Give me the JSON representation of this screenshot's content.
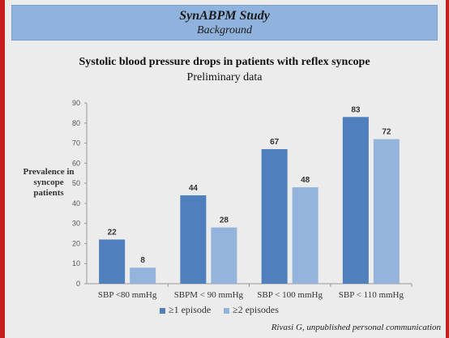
{
  "header": {
    "title": "SynABPM Study",
    "subtitle": "Background"
  },
  "footer": "Rivasi G, unpublished personal communication",
  "colors": {
    "series1": "#4f7fbc",
    "series2": "#94b4dc",
    "header_bg": "#8fb3dc",
    "frame": "#c81e1e"
  },
  "chart_data": {
    "type": "bar",
    "title": "Systolic blood pressure drops in patients with reflex syncope",
    "subtitle": "Preliminary data",
    "ylabel": "Prevalence in syncope patients",
    "xlabel": "",
    "categories": [
      "SBP <80 mmHg",
      "SBPM < 90 mmHg",
      "SBP < 100 mmHg",
      "SBP < 110 mmHg"
    ],
    "series": [
      {
        "name": "≥1 episode",
        "values": [
          22,
          44,
          67,
          83
        ]
      },
      {
        "name": "≥2 episodes",
        "values": [
          8,
          28,
          48,
          72
        ]
      }
    ],
    "ylim": [
      0,
      90
    ],
    "yticks": [
      0,
      10,
      20,
      30,
      40,
      50,
      60,
      70,
      80,
      90
    ],
    "grid": false,
    "legend": "bottom"
  }
}
